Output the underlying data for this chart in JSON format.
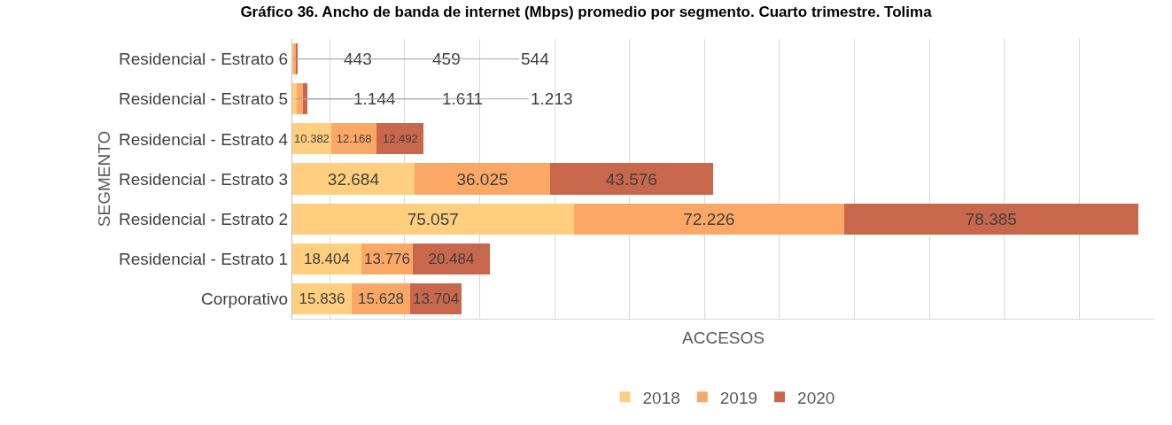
{
  "chart_data": {
    "type": "bar",
    "orientation": "horizontal",
    "stacked": true,
    "title": "Gráfico 36. Ancho de banda de internet (Mbps) promedio por segmento. Cuarto trimestre. Tolima",
    "xlabel": "ACCESOS",
    "ylabel": "SEGMENTO",
    "categories": [
      "Residencial - Estrato 6",
      "Residencial - Estrato 5",
      "Residencial - Estrato 4",
      "Residencial - Estrato 3",
      "Residencial - Estrato 2",
      "Residencial - Estrato 1",
      "Corporativo"
    ],
    "series": [
      {
        "name": "2018",
        "color": "#ffcf7f",
        "values": [
          443,
          1144,
          10382,
          32684,
          75057,
          18404,
          15836
        ],
        "value_labels": [
          "443",
          "1.144",
          "10.382",
          "32.684",
          "75.057",
          "18.404",
          "15.836"
        ]
      },
      {
        "name": "2019",
        "color": "#fba866",
        "values": [
          459,
          1611,
          12168,
          36025,
          72226,
          13776,
          15628
        ],
        "value_labels": [
          "459",
          "1.611",
          "12.168",
          "36.025",
          "72.226",
          "13.776",
          "15.628"
        ]
      },
      {
        "name": "2020",
        "color": "#c8674b",
        "values": [
          544,
          1213,
          12492,
          43576,
          78385,
          20484,
          13704
        ],
        "value_labels": [
          "544",
          "1.213",
          "12.492",
          "43.576",
          "78.385",
          "20.484",
          "13.704"
        ]
      }
    ],
    "xlim": [
      0,
      230000
    ],
    "xticks": [
      {
        "value": 10000,
        "label": null
      },
      {
        "value": 30000,
        "label": null
      },
      {
        "value": 50000,
        "label": null
      },
      {
        "value": 70000,
        "label": null
      },
      {
        "value": 90000,
        "label": null
      },
      {
        "value": 110000,
        "label": null
      },
      {
        "value": 130000,
        "label": null
      },
      {
        "value": 150000,
        "label": null
      },
      {
        "value": 170000,
        "label": null
      },
      {
        "value": 190000,
        "label": null
      },
      {
        "value": 210000,
        "label": null
      }
    ],
    "tick_labels": "y",
    "grid": "x",
    "legend": "bottom"
  }
}
